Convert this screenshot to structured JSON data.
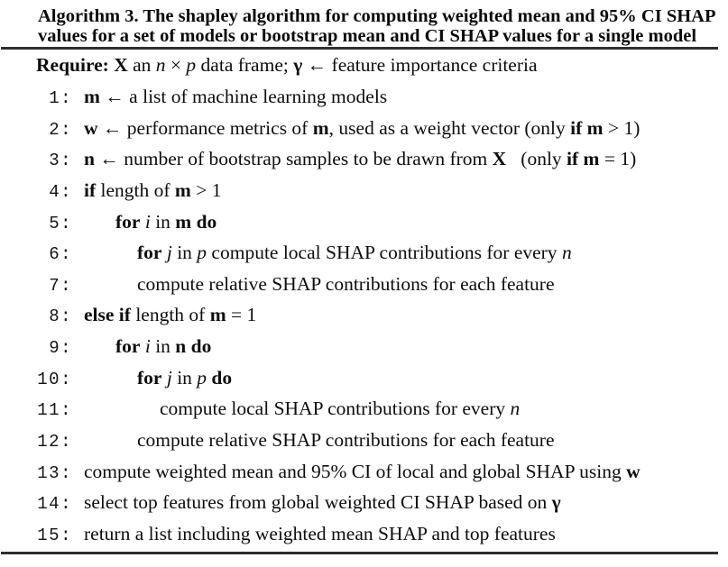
{
  "colors": {
    "background": "#ffffff",
    "text": "#0d0d0d",
    "rule": "#2e2e2e"
  },
  "header": {
    "line1": "Algorithm 3. The shapley algorithm for computing weighted mean and 95% CI SHAP",
    "line2": "values for a set of models or bootstrap mean and CI SHAP values for a single model"
  },
  "require": {
    "segments": [
      {
        "t": "Require: ",
        "s": "b"
      },
      {
        "t": "X",
        "s": "b"
      },
      {
        "t": " an ",
        "s": "r"
      },
      {
        "t": "n",
        "s": "i"
      },
      {
        "t": " × ",
        "s": "r"
      },
      {
        "t": "p",
        "s": "i"
      },
      {
        "t": " data frame; ",
        "s": "r"
      },
      {
        "t": "γ",
        "s": "b"
      },
      {
        "t": " ← feature importance criteria",
        "s": "r"
      }
    ]
  },
  "lines": [
    {
      "num": "1:",
      "indent": 0,
      "segments": [
        {
          "t": "m",
          "s": "b"
        },
        {
          "t": " ← a list of machine learning models",
          "s": "r"
        }
      ]
    },
    {
      "num": "2:",
      "indent": 0,
      "segments": [
        {
          "t": "w",
          "s": "b"
        },
        {
          "t": " ← performance metrics of ",
          "s": "r"
        },
        {
          "t": "m",
          "s": "b"
        },
        {
          "t": ", used as a weight vector (only ",
          "s": "r"
        },
        {
          "t": "if m",
          "s": "b"
        },
        {
          "t": " > 1)",
          "s": "r"
        }
      ]
    },
    {
      "num": "3:",
      "indent": 0,
      "segments": [
        {
          "t": "n",
          "s": "b"
        },
        {
          "t": " ← number of bootstrap samples to be drawn from ",
          "s": "r"
        },
        {
          "t": "X",
          "s": "b"
        },
        {
          "t": "   (only ",
          "s": "r"
        },
        {
          "t": "if m",
          "s": "b"
        },
        {
          "t": " = 1)",
          "s": "r"
        }
      ]
    },
    {
      "num": "4:",
      "indent": 0,
      "segments": [
        {
          "t": "if",
          "s": "b"
        },
        {
          "t": " length of ",
          "s": "r"
        },
        {
          "t": "m",
          "s": "b"
        },
        {
          "t": " > 1",
          "s": "r"
        }
      ]
    },
    {
      "num": "5:",
      "indent": 1,
      "segments": [
        {
          "t": "for",
          "s": "b"
        },
        {
          "t": " ",
          "s": "r"
        },
        {
          "t": "i",
          "s": "i"
        },
        {
          "t": " in ",
          "s": "r"
        },
        {
          "t": "m do",
          "s": "b"
        }
      ]
    },
    {
      "num": "6:",
      "indent": 2,
      "segments": [
        {
          "t": "for",
          "s": "b"
        },
        {
          "t": " ",
          "s": "r"
        },
        {
          "t": "j",
          "s": "i"
        },
        {
          "t": " in ",
          "s": "r"
        },
        {
          "t": "p",
          "s": "i"
        },
        {
          "t": " compute local SHAP contributions for every ",
          "s": "r"
        },
        {
          "t": "n",
          "s": "i"
        }
      ]
    },
    {
      "num": "7:",
      "indent": 2,
      "segments": [
        {
          "t": "compute relative SHAP contributions for each feature",
          "s": "r"
        }
      ]
    },
    {
      "num": "8:",
      "indent": 0,
      "segments": [
        {
          "t": "else if",
          "s": "b"
        },
        {
          "t": " length of ",
          "s": "r"
        },
        {
          "t": "m",
          "s": "b"
        },
        {
          "t": " = 1",
          "s": "r"
        }
      ]
    },
    {
      "num": "9:",
      "indent": 1,
      "segments": [
        {
          "t": "for",
          "s": "b"
        },
        {
          "t": " ",
          "s": "r"
        },
        {
          "t": "i",
          "s": "i"
        },
        {
          "t": " in ",
          "s": "r"
        },
        {
          "t": "n do",
          "s": "b"
        }
      ]
    },
    {
      "num": "10:",
      "indent": 2,
      "segments": [
        {
          "t": "for",
          "s": "b"
        },
        {
          "t": " ",
          "s": "r"
        },
        {
          "t": "j",
          "s": "i"
        },
        {
          "t": " in ",
          "s": "r"
        },
        {
          "t": "p",
          "s": "i"
        },
        {
          "t": " ",
          "s": "r"
        },
        {
          "t": "do",
          "s": "b"
        }
      ]
    },
    {
      "num": "11:",
      "indent": 3,
      "segments": [
        {
          "t": "compute local SHAP contributions for every ",
          "s": "r"
        },
        {
          "t": "n",
          "s": "i"
        }
      ]
    },
    {
      "num": "12:",
      "indent": 2,
      "segments": [
        {
          "t": "compute relative SHAP contributions for each feature",
          "s": "r"
        }
      ]
    },
    {
      "num": "13:",
      "indent": 0,
      "segments": [
        {
          "t": "compute weighted mean and 95% CI of local and global SHAP using ",
          "s": "r"
        },
        {
          "t": "w",
          "s": "b"
        }
      ]
    },
    {
      "num": "14:",
      "indent": 0,
      "segments": [
        {
          "t": "select top features from global weighted CI SHAP based on ",
          "s": "r"
        },
        {
          "t": "γ",
          "s": "b"
        }
      ]
    },
    {
      "num": "15:",
      "indent": 0,
      "segments": [
        {
          "t": "return a list including weighted mean SHAP and top features",
          "s": "r"
        }
      ]
    }
  ]
}
